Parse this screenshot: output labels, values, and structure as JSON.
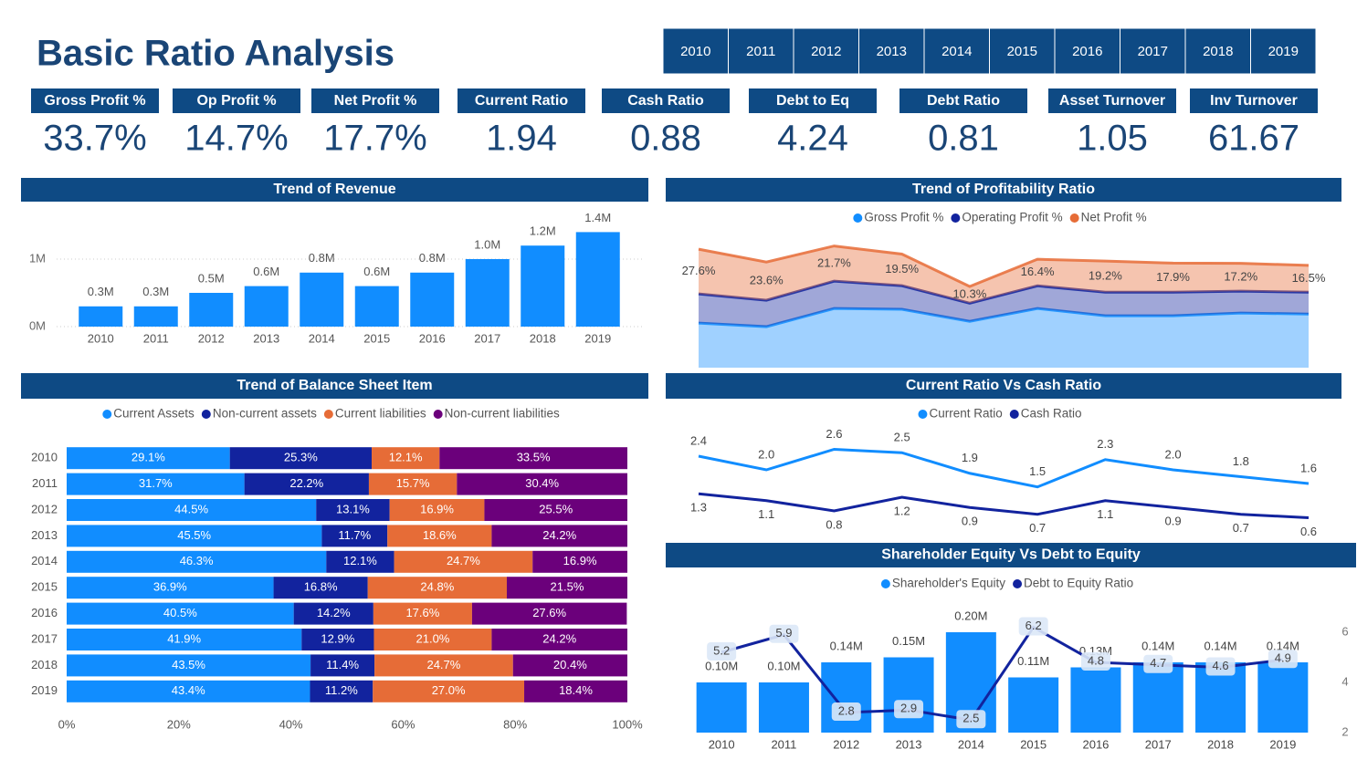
{
  "title": "Basic Ratio Analysis",
  "year_slicer": [
    "2010",
    "2011",
    "2012",
    "2013",
    "2014",
    "2015",
    "2016",
    "2017",
    "2018",
    "2019"
  ],
  "kpis": [
    {
      "label": "Gross Profit %",
      "value": "33.7%"
    },
    {
      "label": "Op Profit %",
      "value": "14.7%"
    },
    {
      "label": "Net Profit %",
      "value": "17.7%"
    },
    {
      "label": "Current Ratio",
      "value": "1.94"
    },
    {
      "label": "Cash Ratio",
      "value": "0.88"
    },
    {
      "label": "Debt to Eq",
      "value": "4.24"
    },
    {
      "label": "Debt Ratio",
      "value": "0.81"
    },
    {
      "label": "Asset Turnover",
      "value": "1.05"
    },
    {
      "label": "Inv Turnover",
      "value": "61.67"
    }
  ],
  "chart_data": [
    {
      "type": "bar",
      "title": "Trend of Revenue",
      "categories": [
        "2010",
        "2011",
        "2012",
        "2013",
        "2014",
        "2015",
        "2016",
        "2017",
        "2018",
        "2019"
      ],
      "values": [
        0.3,
        0.3,
        0.5,
        0.6,
        0.8,
        0.6,
        0.8,
        1.0,
        1.2,
        1.4
      ],
      "value_labels": [
        "0.3M",
        "0.3M",
        "0.5M",
        "0.6M",
        "0.8M",
        "0.6M",
        "0.8M",
        "1.0M",
        "1.2M",
        "1.4M"
      ],
      "color": "#118DFF",
      "ylim": [
        0,
        1.75
      ],
      "yticks": [
        {
          "value": 0,
          "label": "0M"
        },
        {
          "value": 1,
          "label": "1M"
        }
      ],
      "grid": true
    },
    {
      "type": "stacked_area",
      "title": "Trend of Profitability Ratio",
      "legend": "top",
      "ylim": [
        0,
        85
      ],
      "series": [
        {
          "name": "Gross Profit %",
          "color": "#118DFF",
          "values": [
            27.5,
            25.3,
            36.5,
            36.0,
            28.6,
            36.5,
            32.0,
            32.0,
            33.7,
            33.1
          ]
        },
        {
          "name": "Operating Profit %",
          "color": "#12239E",
          "values": [
            18.0,
            16.3,
            16.9,
            14.6,
            11.2,
            14.0,
            14.6,
            14.6,
            13.5,
            13.5
          ]
        },
        {
          "name": "Net Profit %",
          "color": "#E66C37",
          "values": [
            27.6,
            23.6,
            21.7,
            19.5,
            10.3,
            16.4,
            19.2,
            17.9,
            17.2,
            16.5
          ],
          "value_labels": [
            "27.6%",
            "23.6%",
            "21.7%",
            "19.5%",
            "10.3%",
            "16.4%",
            "19.2%",
            "17.9%",
            "17.2%",
            "16.5%"
          ]
        }
      ]
    },
    {
      "type": "stacked_bar",
      "orientation": "horizontal",
      "title": "Trend of Balance Sheet Item",
      "legend": "top",
      "categories": [
        "2010",
        "2011",
        "2012",
        "2013",
        "2014",
        "2015",
        "2016",
        "2017",
        "2018",
        "2019"
      ],
      "xlim": [
        0,
        100
      ],
      "xticks": [
        {
          "value": 0,
          "label": "0%"
        },
        {
          "value": 20,
          "label": "20%"
        },
        {
          "value": 40,
          "label": "40%"
        },
        {
          "value": 60,
          "label": "60%"
        },
        {
          "value": 80,
          "label": "80%"
        },
        {
          "value": 100,
          "label": "100%"
        }
      ],
      "series": [
        {
          "name": "Current Assets",
          "color": "#118DFF",
          "values": [
            29.1,
            31.7,
            44.5,
            45.5,
            46.3,
            36.9,
            40.5,
            41.9,
            43.5,
            43.4
          ],
          "value_labels": [
            "29.1%",
            "31.7%",
            "44.5%",
            "45.5%",
            "46.3%",
            "36.9%",
            "40.5%",
            "41.9%",
            "43.5%",
            "43.4%"
          ]
        },
        {
          "name": "Non-current assets",
          "color": "#12239E",
          "values": [
            25.3,
            22.2,
            13.1,
            11.7,
            12.1,
            16.8,
            14.2,
            12.9,
            11.4,
            11.2
          ],
          "value_labels": [
            "25.3%",
            "22.2%",
            "13.1%",
            "11.7%",
            "12.1%",
            "16.8%",
            "14.2%",
            "12.9%",
            "11.4%",
            "11.2%"
          ]
        },
        {
          "name": "Current liabilities",
          "color": "#E66C37",
          "values": [
            12.1,
            15.7,
            16.9,
            18.6,
            24.7,
            24.8,
            17.6,
            21.0,
            24.7,
            27.0
          ],
          "value_labels": [
            "12.1%",
            "15.7%",
            "16.9%",
            "18.6%",
            "24.7%",
            "24.8%",
            "17.6%",
            "21.0%",
            "24.7%",
            "27.0%"
          ]
        },
        {
          "name": "Non-current liabilities",
          "color": "#6B007B",
          "values": [
            33.5,
            30.4,
            25.5,
            24.2,
            16.9,
            21.5,
            27.6,
            24.2,
            20.4,
            18.4
          ],
          "value_labels": [
            "33.5%",
            "30.4%",
            "25.5%",
            "24.2%",
            "16.9%",
            "21.5%",
            "27.6%",
            "24.2%",
            "20.4%",
            "18.4%"
          ]
        }
      ]
    },
    {
      "type": "line",
      "title": "Current Ratio Vs Cash Ratio",
      "legend": "top",
      "ylim": [
        0,
        3.2
      ],
      "series": [
        {
          "name": "Current Ratio",
          "color": "#118DFF",
          "values": [
            2.4,
            2.0,
            2.6,
            2.5,
            1.9,
            1.5,
            2.3,
            2.0,
            1.8,
            1.6
          ],
          "value_labels": [
            "2.4",
            "2.0",
            "2.6",
            "2.5",
            "1.9",
            "1.5",
            "2.3",
            "2.0",
            "1.8",
            "1.6"
          ]
        },
        {
          "name": "Cash Ratio",
          "color": "#12239E",
          "values": [
            1.3,
            1.1,
            0.8,
            1.2,
            0.9,
            0.7,
            1.1,
            0.9,
            0.7,
            0.6
          ],
          "value_labels": [
            "1.3",
            "1.1",
            "0.8",
            "1.2",
            "0.9",
            "0.7",
            "1.1",
            "0.9",
            "0.7",
            "0.6"
          ]
        }
      ]
    },
    {
      "type": "combo",
      "title": "Shareholder Equity Vs Debt to Equity",
      "legend": "top",
      "categories": [
        "2010",
        "2011",
        "2012",
        "2013",
        "2014",
        "2015",
        "2016",
        "2017",
        "2018",
        "2019"
      ],
      "ylim": [
        0,
        0.25
      ],
      "y2lim": [
        2,
        7
      ],
      "y2ticks": [
        2,
        4,
        6
      ],
      "series": [
        {
          "name": "Shareholder's Equity",
          "type": "bar",
          "color": "#118DFF",
          "values": [
            0.1,
            0.1,
            0.14,
            0.15,
            0.2,
            0.11,
            0.13,
            0.14,
            0.14,
            0.14
          ],
          "value_labels": [
            "0.10M",
            "0.10M",
            "0.14M",
            "0.15M",
            "0.20M",
            "0.11M",
            "0.13M",
            "0.14M",
            "0.14M",
            "0.14M"
          ]
        },
        {
          "name": "Debt to Equity Ratio",
          "type": "line",
          "axis": "y2",
          "color": "#12239E",
          "values": [
            5.2,
            5.9,
            2.8,
            2.9,
            2.5,
            6.2,
            4.8,
            4.7,
            4.6,
            4.9
          ]
        }
      ]
    }
  ]
}
